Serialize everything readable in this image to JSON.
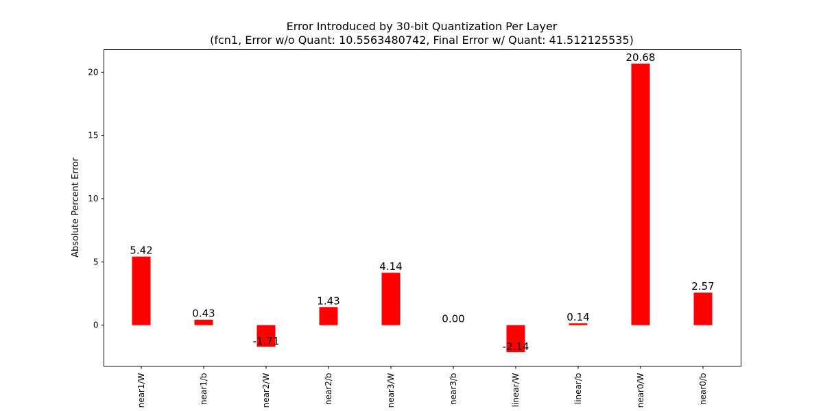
{
  "chart_data": {
    "type": "bar",
    "title": "Error Introduced by 30-bit Quantization Per Layer",
    "subtitle": "(fcn1, Error w/o Quant: 10.5563480742, Final Error w/ Quant: 41.512125535)",
    "xlabel": "",
    "ylabel": "Absolute Percent Error",
    "categories": [
      "near1/W",
      "near1/b",
      "near2/W",
      "near2/b",
      "near3/W",
      "near3/b",
      "linear/W",
      "linear/b",
      "near0/W",
      "near0/b"
    ],
    "values": [
      5.42,
      0.43,
      -1.71,
      1.43,
      4.14,
      0.0,
      -2.14,
      0.14,
      20.68,
      2.57
    ],
    "data_labels": [
      "5.42",
      "0.43",
      "-1.71",
      "1.43",
      "4.14",
      "0.00",
      "-2.14",
      "0.14",
      "20.68",
      "2.57"
    ],
    "ylim": [
      -3.24,
      21.78
    ],
    "yticks": [
      0,
      5,
      10,
      15,
      20
    ],
    "ytick_labels": [
      "0",
      "5",
      "10",
      "15",
      "20"
    ],
    "bar_color": "#ff0000",
    "grid": false,
    "legend": "none"
  }
}
